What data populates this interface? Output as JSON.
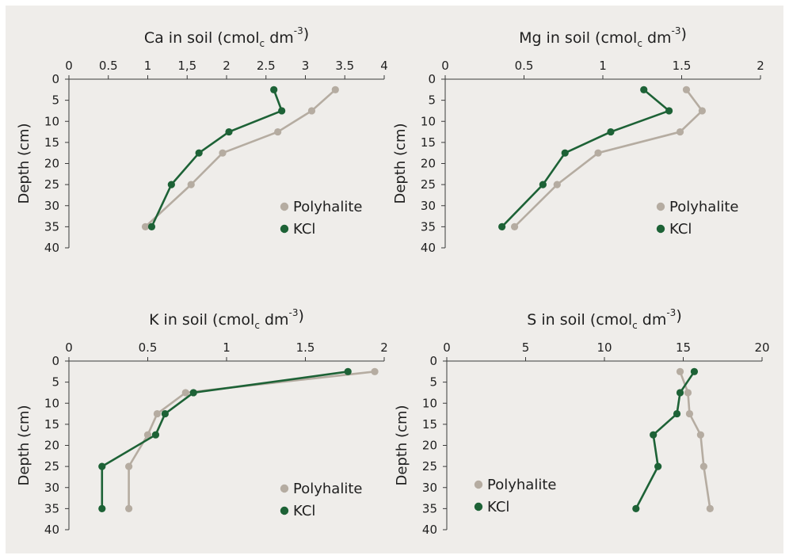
{
  "colors": {
    "polyhalite": "#b5aca1",
    "kcl": "#1d6236",
    "axis": "#3a3a3a",
    "background": "#efedea"
  },
  "chart_data": [
    {
      "type": "line",
      "title": {
        "main": "Ca in soil (cmol",
        "sub": "c",
        "mid": " dm",
        "sup": "-3",
        "end": ")"
      },
      "xlabel": "",
      "ylabel": "Depth (cm)",
      "xlim": [
        0,
        4
      ],
      "ylim": [
        0,
        40
      ],
      "y_inverted": true,
      "x_position": "top",
      "x_ticks": [
        "0",
        "0.5",
        "1",
        "1,5",
        "2",
        "2.5",
        "3",
        "3.5",
        "4"
      ],
      "y_ticks": [
        "0",
        "5",
        "10",
        "15",
        "20",
        "25",
        "30",
        "35",
        "40"
      ],
      "legend_position": "bottom-right",
      "series": [
        {
          "name": "Polyhalite",
          "x": [
            3.38,
            3.08,
            2.65,
            1.95,
            1.55,
            0.97
          ],
          "y": [
            2.5,
            7.5,
            12.5,
            17.5,
            25,
            35
          ]
        },
        {
          "name": "KCl",
          "x": [
            2.6,
            2.7,
            2.03,
            1.65,
            1.3,
            1.05
          ],
          "y": [
            2.5,
            7.5,
            12.5,
            17.5,
            25,
            35
          ]
        }
      ]
    },
    {
      "type": "line",
      "title": {
        "main": "Mg in soil (cmol",
        "sub": "c",
        "mid": " dm",
        "sup": "-3",
        "end": ")"
      },
      "xlabel": "",
      "ylabel": "Depth (cm)",
      "xlim": [
        0,
        2
      ],
      "ylim": [
        0,
        40
      ],
      "y_inverted": true,
      "x_position": "top",
      "x_ticks": [
        "0",
        "0.5",
        "1",
        "1.5",
        "2"
      ],
      "y_ticks": [
        "0",
        "5",
        "10",
        "15",
        "20",
        "25",
        "30",
        "35",
        "40"
      ],
      "legend_position": "bottom-right",
      "series": [
        {
          "name": "Polyhalite",
          "x": [
            1.53,
            1.63,
            1.49,
            0.97,
            0.71,
            0.44
          ],
          "y": [
            2.5,
            7.5,
            12.5,
            17.5,
            25,
            35
          ]
        },
        {
          "name": "KCl",
          "x": [
            1.26,
            1.42,
            1.05,
            0.76,
            0.62,
            0.36
          ],
          "y": [
            2.5,
            7.5,
            12.5,
            17.5,
            25,
            35
          ]
        }
      ]
    },
    {
      "type": "line",
      "title": {
        "main": "K in soil (cmol",
        "sub": "c",
        "mid": " dm",
        "sup": "-3",
        "end": ")"
      },
      "xlabel": "",
      "ylabel": "Depth (cm)",
      "xlim": [
        0,
        2
      ],
      "ylim": [
        0,
        40
      ],
      "y_inverted": true,
      "x_position": "top",
      "x_ticks": [
        "0",
        "0.5",
        "1",
        "1.5",
        "2"
      ],
      "y_ticks": [
        "0",
        "5",
        "10",
        "15",
        "20",
        "25",
        "30",
        "35",
        "40"
      ],
      "legend_position": "bottom-right",
      "series": [
        {
          "name": "Polyhalite",
          "x": [
            1.94,
            0.74,
            0.56,
            0.5,
            0.38,
            0.38
          ],
          "y": [
            2.5,
            7.5,
            12.5,
            17.5,
            25,
            35
          ]
        },
        {
          "name": "KCl",
          "x": [
            1.77,
            0.79,
            0.61,
            0.55,
            0.21,
            0.21
          ],
          "y": [
            2.5,
            7.5,
            12.5,
            17.5,
            25,
            35
          ]
        }
      ]
    },
    {
      "type": "line",
      "title": {
        "main": "S in soil (cmol",
        "sub": "c",
        "mid": " dm",
        "sup": "-3",
        "end": ")"
      },
      "xlabel": "",
      "ylabel": "Depth (cm)",
      "xlim": [
        0,
        20
      ],
      "ylim": [
        0,
        40
      ],
      "y_inverted": true,
      "x_position": "top",
      "x_ticks": [
        "0",
        "5",
        "10",
        "15",
        "20"
      ],
      "y_ticks": [
        "0",
        "5",
        "10",
        "15",
        "20",
        "25",
        "30",
        "35",
        "40"
      ],
      "legend_position": "bottom-left",
      "series": [
        {
          "name": "Polyhalite",
          "x": [
            14.8,
            15.3,
            15.4,
            16.1,
            16.3,
            16.7
          ],
          "y": [
            2.5,
            7.5,
            12.5,
            17.5,
            25,
            35
          ]
        },
        {
          "name": "KCl",
          "x": [
            15.7,
            14.8,
            14.6,
            13.1,
            13.4,
            12.0
          ],
          "y": [
            2.5,
            7.5,
            12.5,
            17.5,
            25,
            35
          ]
        }
      ]
    }
  ]
}
